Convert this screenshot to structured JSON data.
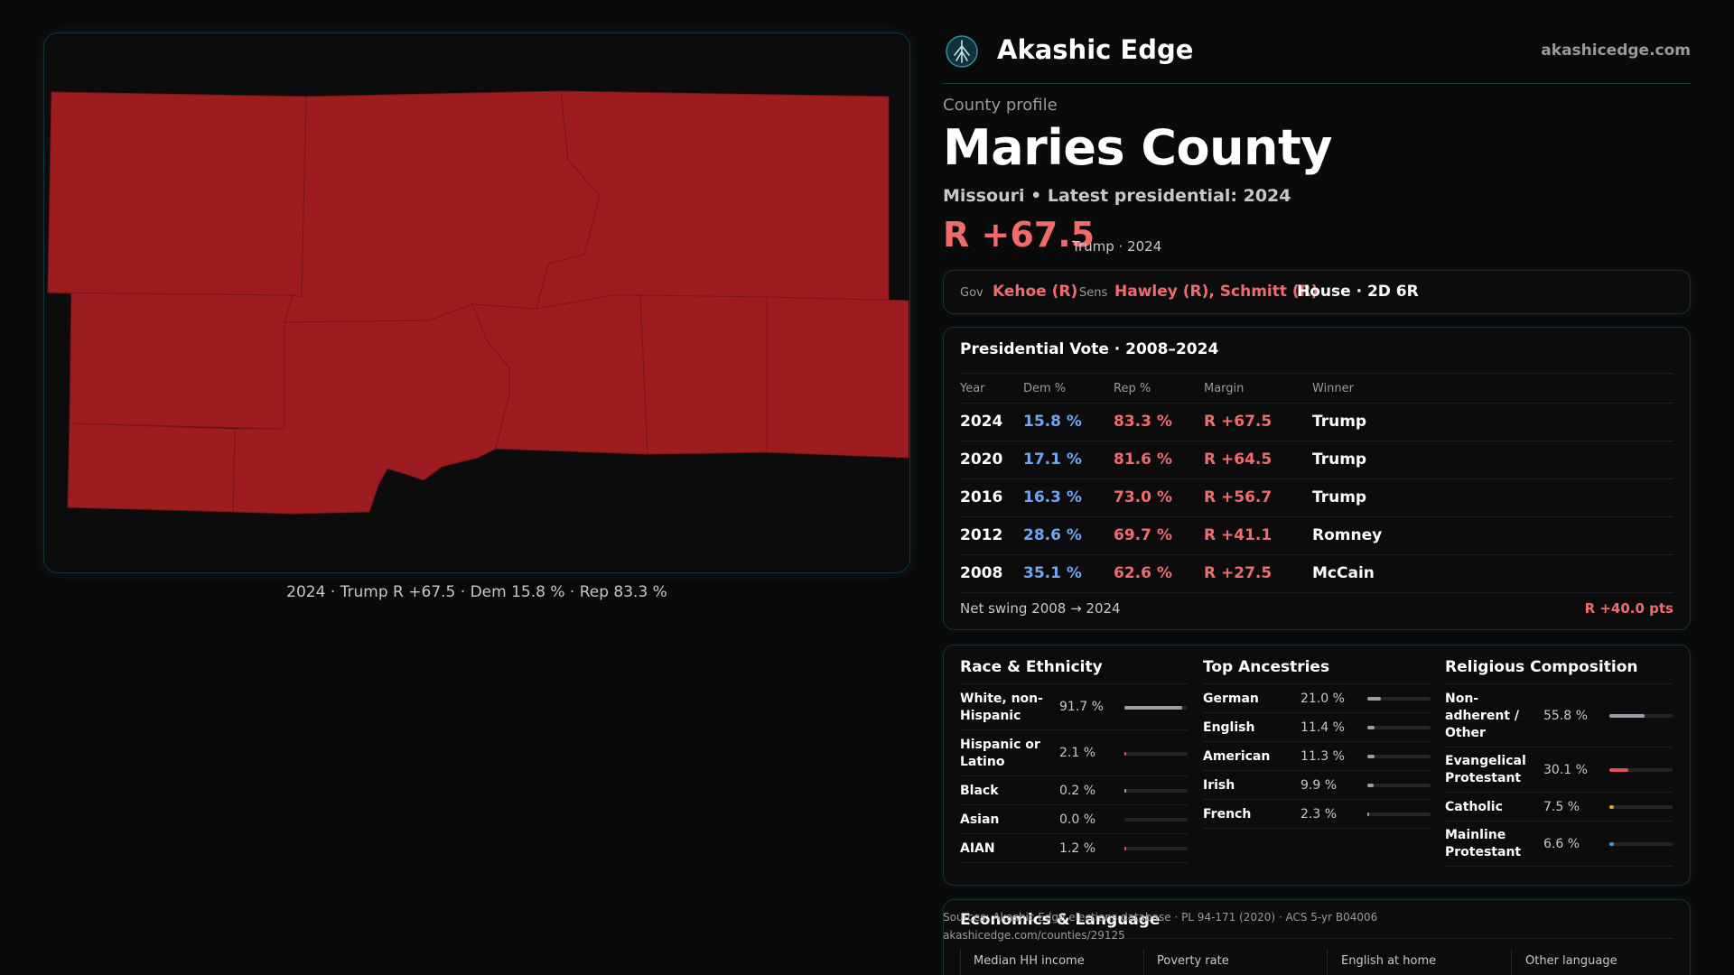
{
  "brand": {
    "name": "Akashic Edge",
    "site": "akashicedge.com",
    "logo_icon": "tree-logo-icon"
  },
  "map": {
    "caption": "2024 · Trump R +67.5 · Dem 15.8 % · Rep 83.3 %",
    "fill_color": "#9c1c20"
  },
  "profile": {
    "kicker": "County profile",
    "title": "Maries County",
    "subline": "Missouri • Latest presidential: 2024",
    "margin": "R +67.5",
    "margin_sub": "Trump · 2024"
  },
  "officials": {
    "gov_label": "Gov",
    "gov": "Kehoe (R)",
    "sens_label": "Sens",
    "sens": "Hawley (R), Schmitt (R)",
    "house": "House · 2D 6R"
  },
  "presidential": {
    "title": "Presidential Vote · 2008–2024",
    "headers": {
      "year": "Year",
      "dem": "Dem %",
      "rep": "Rep %",
      "margin": "Margin",
      "winner": "Winner"
    },
    "rows": [
      {
        "year": "2024",
        "dem": "15.8 %",
        "rep": "83.3 %",
        "margin": "R +67.5",
        "winner": "Trump"
      },
      {
        "year": "2020",
        "dem": "17.1 %",
        "rep": "81.6 %",
        "margin": "R +64.5",
        "winner": "Trump"
      },
      {
        "year": "2016",
        "dem": "16.3 %",
        "rep": "73.0 %",
        "margin": "R +56.7",
        "winner": "Trump"
      },
      {
        "year": "2012",
        "dem": "28.6 %",
        "rep": "69.7 %",
        "margin": "R +41.1",
        "winner": "Romney"
      },
      {
        "year": "2008",
        "dem": "35.1 %",
        "rep": "62.6 %",
        "margin": "R +27.5",
        "winner": "McCain"
      }
    ],
    "swing_label": "Net swing 2008 → 2024",
    "swing_value": "R +40.0 pts"
  },
  "race": {
    "title": "Race & Ethnicity",
    "items": [
      {
        "label": "White, non-Hispanic",
        "pct": "91.7 %",
        "value": 91.7,
        "color": "#9aa0aa"
      },
      {
        "label": "Hispanic or Latino",
        "pct": "2.1 %",
        "value": 2.1,
        "color": "#e05a4a"
      },
      {
        "label": "Black",
        "pct": "0.2 %",
        "value": 0.2,
        "color": "#9aa0aa"
      },
      {
        "label": "Asian",
        "pct": "0.0 %",
        "value": 0.0,
        "color": "#9aa0aa"
      },
      {
        "label": "AIAN",
        "pct": "1.2 %",
        "value": 1.2,
        "color": "#e05a4a"
      }
    ]
  },
  "ancestry": {
    "title": "Top Ancestries",
    "items": [
      {
        "label": "German",
        "pct": "21.0 %",
        "value": 21.0,
        "color": "#9aa0aa"
      },
      {
        "label": "English",
        "pct": "11.4 %",
        "value": 11.4,
        "color": "#9aa0aa"
      },
      {
        "label": "American",
        "pct": "11.3 %",
        "value": 11.3,
        "color": "#9aa0aa"
      },
      {
        "label": "Irish",
        "pct": "9.9 %",
        "value": 9.9,
        "color": "#9aa0aa"
      },
      {
        "label": "French",
        "pct": "2.3 %",
        "value": 2.3,
        "color": "#9aa0aa"
      }
    ]
  },
  "religion": {
    "title": "Religious Composition",
    "items": [
      {
        "label": "Non-adherent / Other",
        "pct": "55.8 %",
        "value": 55.8,
        "color": "#9aa0aa"
      },
      {
        "label": "Evangelical Protestant",
        "pct": "30.1 %",
        "value": 30.1,
        "color": "#e0505a"
      },
      {
        "label": "Catholic",
        "pct": "7.5 %",
        "value": 7.5,
        "color": "#e0a030"
      },
      {
        "label": "Mainline Protestant",
        "pct": "6.6 %",
        "value": 6.6,
        "color": "#4a90e0"
      }
    ]
  },
  "economics": {
    "title": "Economics & Language",
    "headers": [
      "Median HH income",
      "Poverty rate",
      "English at home",
      "Other language"
    ]
  },
  "sources": {
    "line1": "Sources: Akashic Edge elections database · PL 94-171 (2020) · ACS 5-yr B04006",
    "line2": "akashicedge.com/counties/29125"
  }
}
